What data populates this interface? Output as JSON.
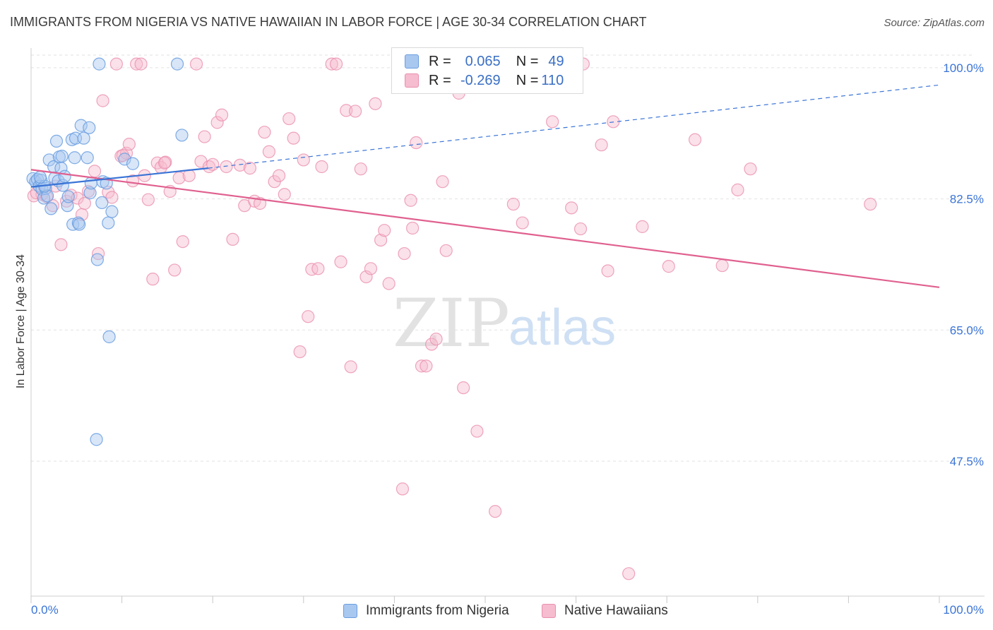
{
  "header": {
    "title": "IMMIGRANTS FROM NIGERIA VS NATIVE HAWAIIAN IN LABOR FORCE | AGE 30-34 CORRELATION CHART",
    "source": "Source: ZipAtlas.com"
  },
  "watermark": {
    "zip": "ZIP",
    "atlas": "atlas"
  },
  "legend": {
    "rows": [
      {
        "r_label": "R = ",
        "r_value": "0.065",
        "n_label": "N = ",
        "n_value": "49"
      },
      {
        "r_label": "R = ",
        "r_value": "-0.269",
        "n_label": "N = ",
        "n_value": "110"
      }
    ]
  },
  "bottom_legend": [
    {
      "label": "Immigrants from Nigeria"
    },
    {
      "label": "Native Hawaiians"
    }
  ],
  "colors": {
    "blue_fill": "#a9c8f0",
    "blue_stroke": "#6a9de0",
    "blue_line": "#3a74d6",
    "pink_fill": "#f6bccf",
    "pink_stroke": "#ea8fae",
    "pink_line": "#e0608f",
    "axis_text": "#3a74d6",
    "grid": "#e2e2e2"
  },
  "chart_data": {
    "type": "scatter",
    "title": "IMMIGRANTS FROM NIGERIA VS NATIVE HAWAIIAN IN LABOR FORCE | AGE 30-34 CORRELATION CHART",
    "xlabel": "",
    "ylabel": "In Labor Force | Age 30-34",
    "xlim": [
      0,
      100
    ],
    "ylim": [
      29.5,
      101.5
    ],
    "x_tick_labels": [
      "0.0%",
      "100.0%"
    ],
    "y_ticks": [
      47.5,
      65.0,
      82.5,
      100.0
    ],
    "y_tick_labels": [
      "47.5%",
      "65.0%",
      "82.5%",
      "100.0%"
    ],
    "series": [
      {
        "name": "Immigrants from Nigeria",
        "r": 0.065,
        "n": 49,
        "trend": {
          "x": [
            0,
            19.5
          ],
          "y": [
            84.1,
            86.6
          ]
        },
        "trend_extension": {
          "x": [
            19.5,
            100
          ],
          "y": [
            86.6,
            97.7
          ]
        },
        "points": [
          [
            0.2,
            85.2
          ],
          [
            0.5,
            84.8
          ],
          [
            0.7,
            85.1
          ],
          [
            0.9,
            84.2
          ],
          [
            1.1,
            85.0
          ],
          [
            1.2,
            83.8
          ],
          [
            1.4,
            82.6
          ],
          [
            1.6,
            83.9
          ],
          [
            1.8,
            82.9
          ],
          [
            2.0,
            87.7
          ],
          [
            2.2,
            81.2
          ],
          [
            2.5,
            86.8
          ],
          [
            2.6,
            85.3
          ],
          [
            2.8,
            90.2
          ],
          [
            3.0,
            84.9
          ],
          [
            3.1,
            88.1
          ],
          [
            3.3,
            86.6
          ],
          [
            3.5,
            84.3
          ],
          [
            3.7,
            85.5
          ],
          [
            4.0,
            81.6
          ],
          [
            4.1,
            82.8
          ],
          [
            4.5,
            90.4
          ],
          [
            4.6,
            79.1
          ],
          [
            4.8,
            88.0
          ],
          [
            4.9,
            90.6
          ],
          [
            5.2,
            79.3
          ],
          [
            5.3,
            79.1
          ],
          [
            5.5,
            92.3
          ],
          [
            5.8,
            90.6
          ],
          [
            6.2,
            88.0
          ],
          [
            6.4,
            92.0
          ],
          [
            6.5,
            83.3
          ],
          [
            6.6,
            84.6
          ],
          [
            7.3,
            74.4
          ],
          [
            7.5,
            100.5
          ],
          [
            7.8,
            82.0
          ],
          [
            7.9,
            84.8
          ],
          [
            8.3,
            84.6
          ],
          [
            8.5,
            79.3
          ],
          [
            8.6,
            64.1
          ],
          [
            8.9,
            80.8
          ],
          [
            10.3,
            87.8
          ],
          [
            11.2,
            87.2
          ],
          [
            16.1,
            100.5
          ],
          [
            16.6,
            91.0
          ],
          [
            7.2,
            50.4
          ],
          [
            3.4,
            88.2
          ],
          [
            1.5,
            84.2
          ],
          [
            1.0,
            85.4
          ]
        ]
      },
      {
        "name": "Native Hawaiians",
        "r": -0.269,
        "n": 110,
        "trend": {
          "x": [
            0,
            100
          ],
          "y": [
            86.4,
            70.7
          ]
        },
        "points": [
          [
            0.3,
            82.9
          ],
          [
            1.2,
            83.1
          ],
          [
            1.7,
            82.8
          ],
          [
            2.7,
            84.2
          ],
          [
            3.3,
            76.4
          ],
          [
            3.9,
            82.2
          ],
          [
            4.4,
            83.0
          ],
          [
            5.1,
            82.6
          ],
          [
            5.6,
            80.4
          ],
          [
            5.9,
            81.9
          ],
          [
            6.3,
            83.5
          ],
          [
            7.0,
            86.2
          ],
          [
            7.4,
            75.2
          ],
          [
            7.9,
            95.6
          ],
          [
            8.5,
            83.4
          ],
          [
            8.9,
            82.7
          ],
          [
            9.4,
            100.5
          ],
          [
            9.9,
            88.2
          ],
          [
            10.5,
            88.6
          ],
          [
            10.8,
            89.8
          ],
          [
            11.2,
            84.9
          ],
          [
            11.6,
            100.5
          ],
          [
            12.1,
            100.5
          ],
          [
            12.5,
            85.6
          ],
          [
            12.9,
            82.4
          ],
          [
            13.4,
            71.8
          ],
          [
            13.9,
            87.3
          ],
          [
            14.3,
            86.7
          ],
          [
            14.8,
            87.4
          ],
          [
            15.3,
            83.5
          ],
          [
            15.8,
            73.0
          ],
          [
            16.3,
            85.3
          ],
          [
            16.7,
            76.8
          ],
          [
            17.4,
            85.6
          ],
          [
            18.2,
            100.5
          ],
          [
            18.7,
            87.5
          ],
          [
            19.1,
            90.8
          ],
          [
            19.6,
            86.8
          ],
          [
            20.0,
            87.1
          ],
          [
            20.5,
            92.7
          ],
          [
            21.0,
            93.7
          ],
          [
            21.5,
            86.8
          ],
          [
            22.2,
            77.1
          ],
          [
            23.0,
            87.0
          ],
          [
            23.5,
            81.6
          ],
          [
            24.1,
            86.6
          ],
          [
            24.6,
            82.2
          ],
          [
            25.2,
            81.9
          ],
          [
            25.7,
            91.4
          ],
          [
            26.2,
            88.8
          ],
          [
            26.8,
            84.8
          ],
          [
            27.3,
            85.6
          ],
          [
            27.9,
            83.1
          ],
          [
            28.4,
            93.2
          ],
          [
            28.9,
            90.6
          ],
          [
            29.6,
            62.1
          ],
          [
            30.0,
            87.7
          ],
          [
            30.5,
            66.8
          ],
          [
            30.9,
            73.1
          ],
          [
            31.6,
            73.2
          ],
          [
            32.0,
            86.8
          ],
          [
            33.1,
            100.5
          ],
          [
            33.6,
            100.5
          ],
          [
            34.1,
            74.1
          ],
          [
            34.7,
            94.3
          ],
          [
            35.2,
            60.1
          ],
          [
            35.7,
            94.2
          ],
          [
            36.3,
            86.5
          ],
          [
            36.9,
            72.1
          ],
          [
            37.4,
            73.2
          ],
          [
            37.9,
            95.2
          ],
          [
            38.5,
            77.0
          ],
          [
            38.9,
            78.3
          ],
          [
            39.4,
            71.2
          ],
          [
            40.9,
            43.8
          ],
          [
            41.1,
            75.2
          ],
          [
            41.8,
            82.3
          ],
          [
            42.0,
            78.6
          ],
          [
            42.4,
            90.0
          ],
          [
            43.0,
            60.2
          ],
          [
            43.5,
            60.2
          ],
          [
            44.1,
            63.1
          ],
          [
            44.6,
            63.8
          ],
          [
            45.3,
            84.8
          ],
          [
            45.7,
            75.6
          ],
          [
            47.1,
            96.6
          ],
          [
            47.6,
            57.3
          ],
          [
            49.1,
            51.5
          ],
          [
            51.1,
            40.8
          ],
          [
            53.1,
            81.8
          ],
          [
            54.1,
            79.3
          ],
          [
            57.4,
            92.8
          ],
          [
            59.5,
            81.3
          ],
          [
            60.5,
            78.5
          ],
          [
            60.8,
            100.5
          ],
          [
            62.8,
            89.7
          ],
          [
            63.5,
            72.9
          ],
          [
            64.1,
            92.8
          ],
          [
            65.8,
            32.5
          ],
          [
            67.3,
            78.8
          ],
          [
            70.2,
            73.5
          ],
          [
            73.1,
            90.4
          ],
          [
            76.1,
            73.6
          ],
          [
            77.8,
            83.7
          ],
          [
            79.2,
            86.5
          ],
          [
            92.4,
            81.8
          ],
          [
            0.6,
            83.3
          ],
          [
            2.4,
            81.6
          ],
          [
            10.1,
            88.3
          ],
          [
            14.7,
            87.3
          ]
        ]
      }
    ],
    "legend_position": "top-center"
  }
}
